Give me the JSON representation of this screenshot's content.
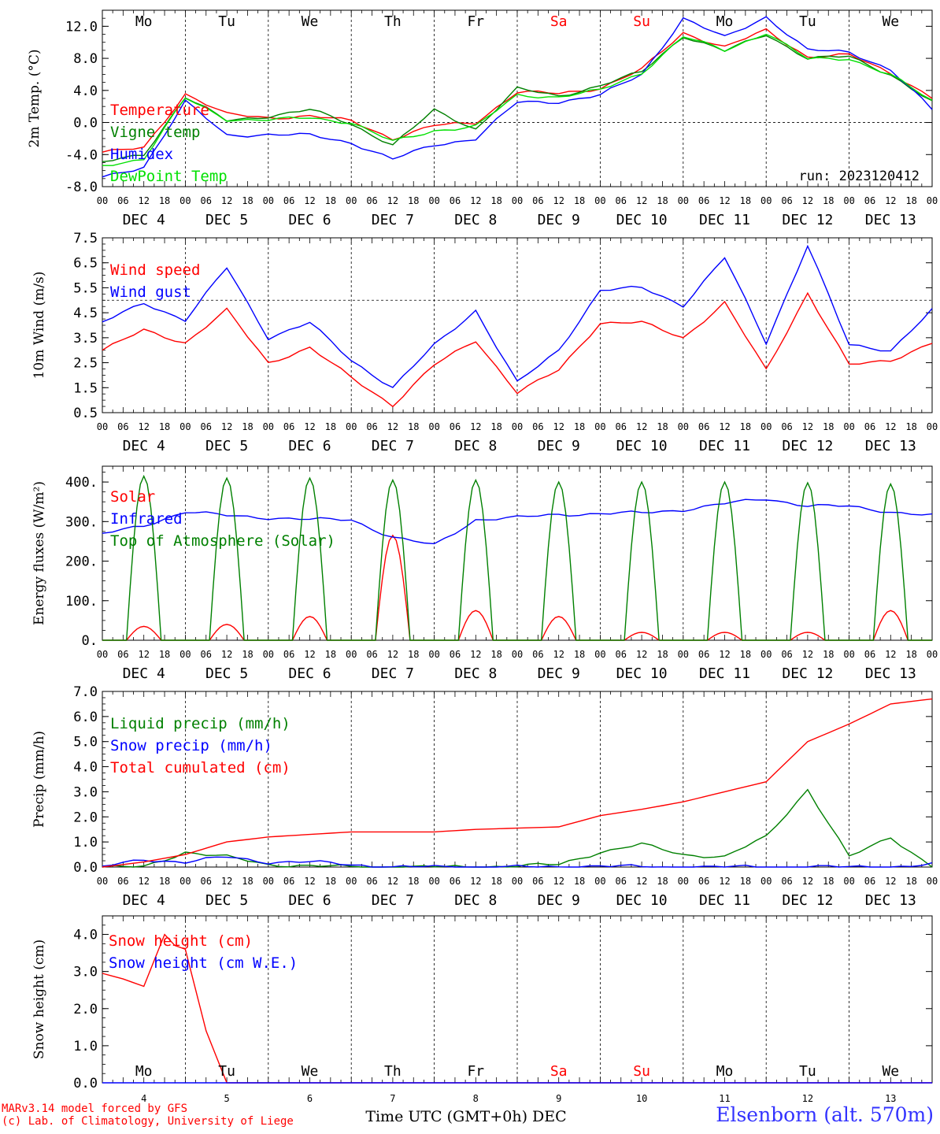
{
  "chart_data": [
    {
      "type": "line",
      "ylabel": "2m Temp. (°C)",
      "ylim": [
        -8,
        14
      ],
      "yticks": [
        "-8.0",
        "-4.0",
        "0.0",
        "4.0",
        "8.0",
        "12.0"
      ],
      "reference_line": 0,
      "annotation": "run: 2023120412",
      "x_hours": [
        0,
        12,
        24,
        36,
        48,
        60,
        72,
        84,
        96,
        108,
        120,
        132,
        144,
        156,
        168,
        180,
        192,
        204,
        216,
        228,
        240
      ],
      "series": [
        {
          "name": "Temperature",
          "color": "#ff0000",
          "values": [
            -3.7,
            -3.2,
            3.6,
            1.0,
            0.6,
            0.8,
            0.2,
            -2.0,
            -0.4,
            0.0,
            3.8,
            3.6,
            4.3,
            6.6,
            11.2,
            9.4,
            11.5,
            8.2,
            8.4,
            6.2,
            3.1
          ]
        },
        {
          "name": "Vigne temp",
          "color": "#008000",
          "values": [
            -5.0,
            -4.0,
            3.2,
            0.2,
            0.8,
            1.6,
            -0.2,
            -2.8,
            1.5,
            -0.8,
            4.2,
            3.3,
            4.6,
            6.3,
            10.8,
            8.9,
            11.0,
            8.0,
            8.2,
            6.0,
            2.5
          ]
        },
        {
          "name": "Humidex",
          "color": "#0000ff",
          "values": [
            -6.9,
            -5.5,
            2.6,
            -1.6,
            -1.5,
            -1.6,
            -2.5,
            -4.6,
            -2.8,
            -2.0,
            2.5,
            2.6,
            3.4,
            6.0,
            13.0,
            10.6,
            13.2,
            9.0,
            8.8,
            6.6,
            1.6
          ]
        },
        {
          "name": "DewPoint Temp",
          "color": "#00e000",
          "values": [
            -5.4,
            -4.5,
            3.0,
            0.4,
            0.3,
            0.6,
            0.0,
            -2.4,
            -1.0,
            -0.5,
            3.4,
            3.2,
            4.0,
            6.2,
            10.7,
            9.0,
            11.2,
            7.9,
            8.0,
            5.9,
            2.7
          ]
        }
      ]
    },
    {
      "type": "line",
      "ylabel": "10m Wind (m/s)",
      "ylim": [
        0.5,
        7.5
      ],
      "yticks": [
        "0.5",
        "1.5",
        "2.5",
        "3.5",
        "4.5",
        "5.5",
        "6.5",
        "7.5"
      ],
      "reference_line": 5.0,
      "x_hours": [
        0,
        12,
        24,
        36,
        48,
        60,
        72,
        84,
        96,
        108,
        120,
        132,
        144,
        156,
        168,
        180,
        192,
        204,
        216,
        228,
        240
      ],
      "series": [
        {
          "name": "Wind speed",
          "color": "#ff0000",
          "values": [
            3.0,
            3.8,
            3.3,
            4.6,
            2.5,
            3.1,
            1.9,
            0.8,
            2.4,
            3.4,
            1.3,
            2.2,
            4.1,
            4.1,
            3.5,
            4.9,
            2.2,
            5.3,
            2.4,
            2.6,
            3.3
          ]
        },
        {
          "name": "Wind gust",
          "color": "#0000ff",
          "values": [
            4.1,
            4.9,
            4.2,
            6.3,
            3.5,
            4.1,
            2.6,
            1.5,
            3.2,
            4.6,
            1.7,
            3.0,
            5.4,
            5.5,
            4.8,
            6.7,
            3.3,
            7.2,
            3.2,
            3.0,
            4.6
          ]
        }
      ]
    },
    {
      "type": "line",
      "ylabel": "Energy fluxes (W/m²)",
      "ylim": [
        0,
        440
      ],
      "yticks": [
        "0.",
        "100.",
        "200.",
        "300.",
        "400."
      ],
      "x_hours": [
        0,
        12,
        24,
        36,
        48,
        60,
        72,
        84,
        96,
        108,
        120,
        132,
        144,
        156,
        168,
        180,
        192,
        204,
        216,
        228,
        240
      ],
      "series": [
        {
          "name": "Solar",
          "color": "#ff0000",
          "peaks": [
            35,
            40,
            60,
            265,
            75,
            60,
            20,
            20,
            20,
            75
          ]
        },
        {
          "name": "Infrared",
          "color": "#0000ff",
          "values": [
            268,
            290,
            325,
            315,
            310,
            305,
            305,
            260,
            240,
            305,
            310,
            318,
            320,
            322,
            330,
            345,
            358,
            340,
            338,
            325,
            315
          ]
        },
        {
          "name": "Top of Atmosphere (Solar)",
          "color": "#008000",
          "peaks": [
            415,
            410,
            410,
            405,
            405,
            400,
            400,
            400,
            398,
            395
          ]
        }
      ]
    },
    {
      "type": "line",
      "ylabel": "Precip (mm/h)",
      "ylim": [
        0,
        7
      ],
      "yticks": [
        "0.0",
        "1.0",
        "2.0",
        "3.0",
        "4.0",
        "5.0",
        "6.0",
        "7.0"
      ],
      "x_hours": [
        0,
        12,
        24,
        36,
        48,
        60,
        72,
        84,
        96,
        108,
        120,
        132,
        144,
        156,
        168,
        180,
        192,
        204,
        216,
        228,
        240
      ],
      "series": [
        {
          "name": "Liquid precip (mm/h)",
          "color": "#008000",
          "values": [
            0.0,
            0.0,
            0.6,
            0.4,
            0.1,
            0.05,
            0.0,
            0.0,
            0.0,
            0.0,
            0.05,
            0.1,
            0.6,
            0.9,
            0.5,
            0.4,
            1.2,
            3.1,
            0.4,
            1.2,
            0.0
          ]
        },
        {
          "name": "Snow precip (mm/h)",
          "color": "#0000ff",
          "values": [
            0.0,
            0.3,
            0.2,
            0.4,
            0.2,
            0.2,
            0.1,
            0.0,
            0.0,
            0.0,
            0.0,
            0.0,
            0.05,
            0.0,
            0.0,
            0.0,
            0.0,
            0.0,
            0.0,
            0.0,
            0.1
          ]
        },
        {
          "name": "Total cumulated (cm)",
          "color": "#ff0000",
          "values": [
            0.0,
            0.2,
            0.5,
            1.0,
            1.2,
            1.3,
            1.4,
            1.4,
            1.4,
            1.5,
            1.55,
            1.6,
            2.05,
            2.3,
            2.6,
            3.0,
            3.4,
            5.0,
            5.7,
            6.5,
            6.7
          ]
        }
      ]
    },
    {
      "type": "line",
      "ylabel": "Snow height (cm)",
      "xlabel": "Time UTC (GMT+0h) DEC",
      "ylim": [
        0,
        4.5
      ],
      "yticks": [
        "0.0",
        "1.0",
        "2.0",
        "3.0",
        "4.0"
      ],
      "x_hours": [
        0,
        6,
        12,
        18,
        21,
        24,
        30,
        36,
        40,
        48,
        60,
        72,
        96,
        240
      ],
      "series": [
        {
          "name": "Snow height (cm)",
          "color": "#ff0000",
          "values": [
            2.95,
            2.8,
            2.6,
            4.0,
            3.7,
            3.6,
            1.4,
            0.0,
            0.0,
            0.0,
            0.0,
            0.0,
            0.0,
            0.0
          ]
        },
        {
          "name": "Snow height (cm W.E.)",
          "color": "#0000ff",
          "values": [
            0.0,
            0.0,
            0.0,
            0.0,
            0.0,
            0.0,
            0.0,
            0.0,
            0.0,
            0.0,
            0.0,
            0.0,
            0.0,
            0.0
          ]
        }
      ],
      "bottom_day_numbers": [
        "4",
        "5",
        "6",
        "7",
        "8",
        "9",
        "10",
        "11",
        "12",
        "13"
      ]
    }
  ],
  "day_names": [
    "Mo",
    "Tu",
    "We",
    "Th",
    "Fr",
    "Sa",
    "Su",
    "Mo",
    "Tu",
    "We"
  ],
  "weekend_color": "#ff0000",
  "date_labels": [
    "DEC  4",
    "DEC  5",
    "DEC  6",
    "DEC  7",
    "DEC  8",
    "DEC  9",
    "DEC 10",
    "DEC 11",
    "DEC 12",
    "DEC 13"
  ],
  "hour_ticks": [
    "00",
    "06",
    "12",
    "18"
  ],
  "footer": {
    "model": "MARv3.14 model forced by GFS",
    "credit": "(c) Lab. of Climatology, University of Liege",
    "station": "Elsenborn (alt. 570m)"
  }
}
